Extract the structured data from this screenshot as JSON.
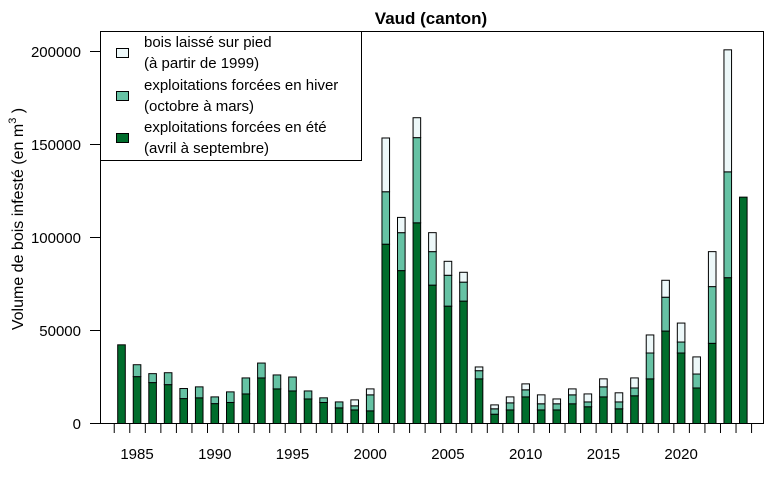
{
  "chart_data": {
    "type": "bar",
    "stacked": true,
    "title": "Vaud (canton)",
    "xlabel": "",
    "ylabel": "Volume de bois infesté (en m",
    "ylabel_superscript": "3",
    "ylabel_suffix": " )",
    "ylim": [
      0,
      200000
    ],
    "yticks": [
      0,
      50000,
      100000,
      150000,
      200000
    ],
    "ytick_labels": [
      "0",
      "50000",
      "100000",
      "150000",
      "200000"
    ],
    "xtick_labels": [
      {
        "year": 1985,
        "label": "1985"
      },
      {
        "year": 1990,
        "label": "1990"
      },
      {
        "year": 1995,
        "label": "1995"
      },
      {
        "year": 2000,
        "label": "2000"
      },
      {
        "year": 2005,
        "label": "2005"
      },
      {
        "year": 2010,
        "label": "2010"
      },
      {
        "year": 2015,
        "label": "2015"
      },
      {
        "year": 2020,
        "label": "2020"
      }
    ],
    "grid": false,
    "legend_position": "top-left",
    "categories": [
      1984,
      1985,
      1986,
      1987,
      1988,
      1989,
      1990,
      1991,
      1992,
      1993,
      1994,
      1995,
      1996,
      1997,
      1998,
      1999,
      2000,
      2001,
      2002,
      2003,
      2004,
      2005,
      2006,
      2007,
      2008,
      2009,
      2010,
      2011,
      2012,
      2013,
      2014,
      2015,
      2016,
      2017,
      2018,
      2019,
      2020,
      2021,
      2022,
      2023,
      2024
    ],
    "series": [
      {
        "name": "exploitations forcées en été",
        "legend_lines": [
          "exploitations forcées en été",
          "(avril à septembre)"
        ],
        "color": "#006d2c",
        "values": [
          42300,
          25200,
          22000,
          20900,
          13400,
          13800,
          10700,
          11300,
          15900,
          24500,
          18600,
          17500,
          13200,
          11300,
          8400,
          7300,
          6800,
          96400,
          82200,
          107900,
          74400,
          63100,
          65800,
          24000,
          5000,
          7300,
          14300,
          7300,
          7300,
          10600,
          9000,
          14300,
          7900,
          14900,
          24000,
          49700,
          37900,
          19100,
          43100,
          78400,
          121700
        ]
      },
      {
        "name": "exploitations forcées en hiver",
        "legend_lines": [
          "exploitations forcées en hiver",
          "(octobre à mars)"
        ],
        "color": "#66c2a4",
        "values": [
          0,
          6400,
          4800,
          6400,
          5400,
          5900,
          3600,
          5700,
          8600,
          8000,
          7500,
          7500,
          4300,
          2500,
          3200,
          2200,
          8600,
          28200,
          20400,
          45800,
          18000,
          16600,
          10200,
          4400,
          2900,
          3800,
          3800,
          3300,
          3300,
          4800,
          2600,
          5400,
          3700,
          4200,
          13900,
          18200,
          5900,
          7500,
          30500,
          56900,
          0
        ]
      },
      {
        "name": "bois laissé sur pied",
        "legend_lines": [
          "bois laissé sur pied",
          "(à partir de 1999)"
        ],
        "color": "#edf8f9",
        "values": [
          0,
          0,
          0,
          0,
          0,
          0,
          0,
          0,
          0,
          0,
          0,
          0,
          0,
          0,
          0,
          3200,
          3200,
          28900,
          8200,
          10700,
          10200,
          7500,
          5300,
          2000,
          2100,
          3200,
          3200,
          4800,
          2600,
          3200,
          4300,
          4300,
          4900,
          5400,
          9700,
          9100,
          10200,
          9200,
          18800,
          65600,
          0
        ]
      }
    ]
  }
}
